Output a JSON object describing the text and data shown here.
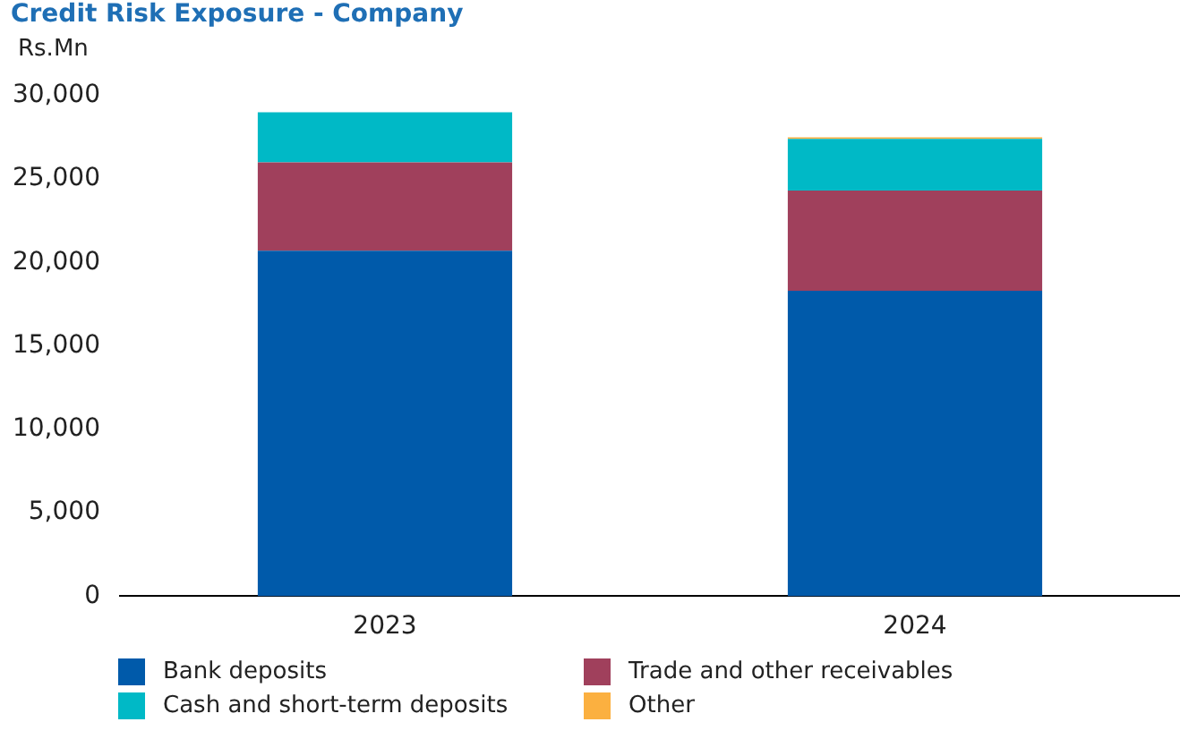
{
  "chart_data": {
    "type": "bar",
    "title": "Credit Risk Exposure - Company",
    "ylabel": "Rs.Mn",
    "categories": [
      "2023",
      "2024"
    ],
    "stacked": true,
    "series": [
      {
        "name": "Bank deposits",
        "color": "#005aaa",
        "values": [
          20700,
          18300
        ]
      },
      {
        "name": "Trade and other receivables",
        "color": "#a0405c",
        "values": [
          5300,
          6000
        ]
      },
      {
        "name": "Cash and short-term deposits",
        "color": "#00b9c6",
        "values": [
          3000,
          3100
        ]
      },
      {
        "name": "Other",
        "color": "#fbb040",
        "values": [
          0,
          100
        ]
      }
    ],
    "ylim": [
      0,
      30000
    ],
    "yticks": [
      0,
      {
        "value": 5000,
        "label": "5,000"
      },
      {
        "value": 10000,
        "label": "10,000"
      },
      {
        "value": 15000,
        "label": "15,000"
      },
      {
        "value": 20000,
        "label": "20,000"
      },
      {
        "value": 25000,
        "label": "25,000"
      },
      {
        "value": 30000,
        "label": "30,000"
      }
    ],
    "grid": false,
    "legend": "bottom"
  }
}
